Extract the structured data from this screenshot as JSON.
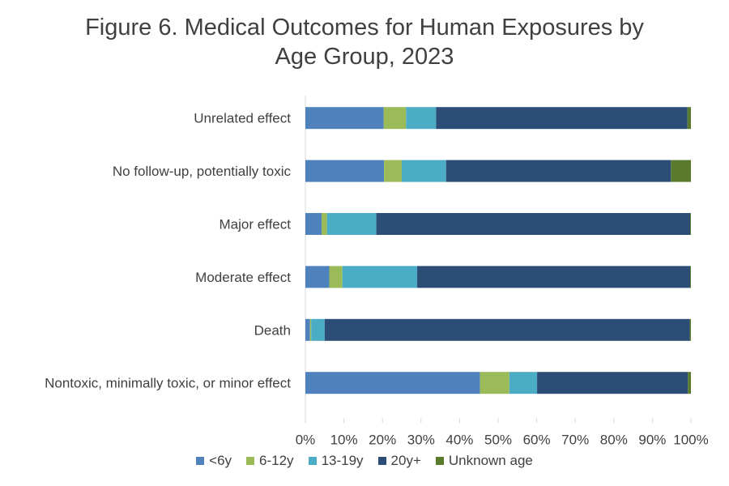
{
  "chart_data": {
    "type": "bar",
    "orientation": "horizontal",
    "stacked": "percent",
    "title_lines": [
      "Figure 6. Medical Outcomes for Human Exposures by",
      "Age Group, 2023"
    ],
    "categories": [
      "Unrelated effect",
      "No follow-up, potentially toxic",
      "Major effect",
      "Moderate effect",
      "Death",
      "Nontoxic, minimally toxic, or minor effect"
    ],
    "series": [
      {
        "name": "<6y",
        "color": "#4f81bd",
        "values": [
          20.3,
          20.4,
          4.2,
          6.2,
          1.2,
          45.3
        ]
      },
      {
        "name": "6-12y",
        "color": "#9bbb59",
        "values": [
          5.8,
          4.6,
          1.4,
          3.4,
          0.3,
          7.6
        ]
      },
      {
        "name": "13-19y",
        "color": "#4bacc6",
        "values": [
          7.8,
          11.5,
          12.8,
          19.4,
          3.5,
          7.2
        ]
      },
      {
        "name": "20y+",
        "color": "#2c4d75",
        "values": [
          65.2,
          58.3,
          81.4,
          70.8,
          94.7,
          39.1
        ]
      },
      {
        "name": "Unknown age",
        "color": "#5a7a2e",
        "values": [
          0.9,
          5.2,
          0.2,
          0.2,
          0.3,
          0.8
        ]
      }
    ],
    "x_ticks": [
      "0%",
      "10%",
      "20%",
      "30%",
      "40%",
      "50%",
      "60%",
      "70%",
      "80%",
      "90%",
      "100%"
    ],
    "xlim": [
      0,
      100
    ],
    "legend_position": "bottom",
    "grid": false
  }
}
